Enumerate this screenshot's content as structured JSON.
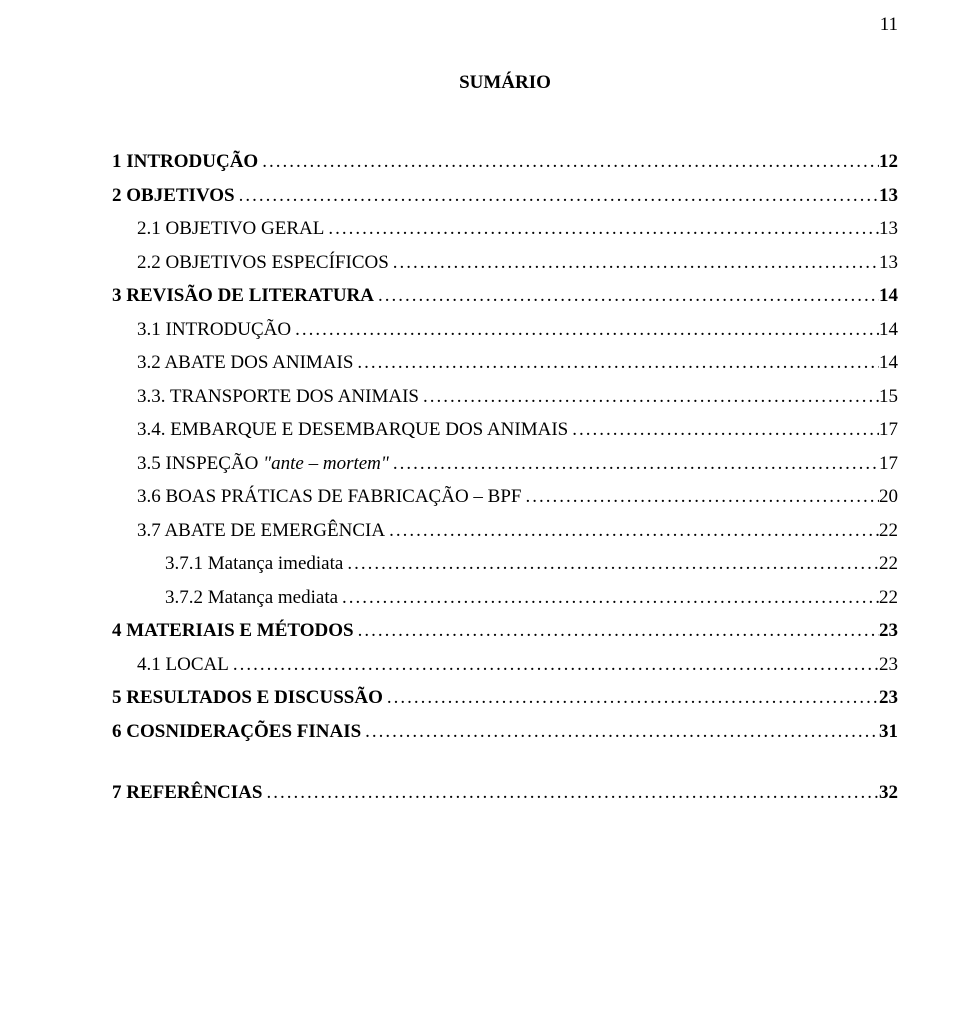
{
  "page_number": "11",
  "heading": "SUMÁRIO",
  "leader_dots": "....................................................................................................................................................................................................................",
  "toc": [
    {
      "text": "1 INTRODUÇÃO",
      "page": "12",
      "bold": true,
      "indent": 0
    },
    {
      "text": "2 OBJETIVOS",
      "page": "13",
      "bold": true,
      "indent": 0
    },
    {
      "text": "2.1 OBJETIVO GERAL",
      "page": "13",
      "bold": false,
      "indent": 1
    },
    {
      "text": "2.2 OBJETIVOS ESPECÍFICOS",
      "page": "13",
      "bold": false,
      "indent": 1
    },
    {
      "text": "3 REVISÃO DE LITERATURA",
      "page": "14",
      "bold": true,
      "indent": 0
    },
    {
      "text": "3.1 INTRODUÇÃO",
      "page": "14",
      "bold": false,
      "indent": 1
    },
    {
      "text": "3.2 ABATE DOS ANIMAIS",
      "page": "14",
      "bold": false,
      "indent": 1
    },
    {
      "text": "3.3. TRANSPORTE DOS ANIMAIS",
      "page": "15",
      "bold": false,
      "indent": 1
    },
    {
      "text": "3.4. EMBARQUE E DESEMBARQUE DOS ANIMAIS",
      "page": "17",
      "bold": false,
      "indent": 1
    },
    {
      "html": "3.5 INSPEÇÃO <em>\"ante – mortem\"</em>",
      "page": "17",
      "bold": false,
      "indent": 1
    },
    {
      "text": "3.6 BOAS PRÁTICAS DE FABRICAÇÃO – BPF",
      "page": "20",
      "bold": false,
      "indent": 1
    },
    {
      "text": "3.7 ABATE DE EMERGÊNCIA",
      "page": "22",
      "bold": false,
      "indent": 1
    },
    {
      "text": "3.7.1 Matança imediata",
      "page": "22",
      "bold": false,
      "indent": 2
    },
    {
      "text": "3.7.2 Matança mediata",
      "page": "22",
      "bold": false,
      "indent": 2
    },
    {
      "text": "4 MATERIAIS E MÉTODOS",
      "page": "23",
      "bold": true,
      "indent": 0
    },
    {
      "text": "4.1 LOCAL",
      "page": "23",
      "bold": false,
      "indent": 1
    },
    {
      "text": "5 RESULTADOS E DISCUSSÃO",
      "page": "23",
      "bold": true,
      "indent": 0
    },
    {
      "text": "6 COSNIDERAÇÕES FINAIS",
      "page": "31",
      "bold": true,
      "indent": 0
    },
    {
      "text": "7 REFERÊNCIAS",
      "page": "32",
      "bold": true,
      "indent": 0,
      "gap_before": true
    }
  ]
}
